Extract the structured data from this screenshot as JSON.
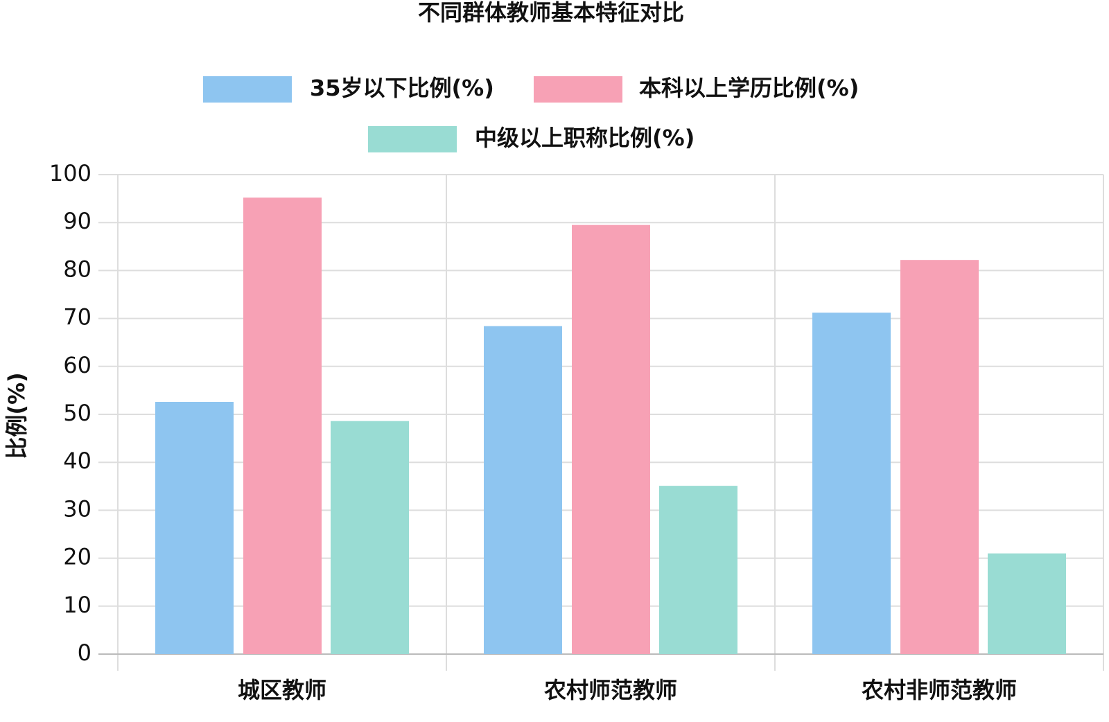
{
  "chart_data": {
    "type": "bar",
    "title": "不同群体教师基本特征对比",
    "y_label": "比例(%)",
    "categories": [
      "城区教师",
      "农村师范教师",
      "农村非师范教师"
    ],
    "series": [
      {
        "name": "35岁以下比例(%)",
        "color": "#8ec5f0",
        "values": [
          52.6,
          68.4,
          71.2
        ]
      },
      {
        "name": "本科以上学历比例(%)",
        "color": "#f7a1b5",
        "values": [
          95.2,
          89.5,
          82.2
        ]
      },
      {
        "name": "中级以上职称比例(%)",
        "color": "#99dcd3",
        "values": [
          48.6,
          35.1,
          21.0
        ]
      }
    ],
    "ylim": [
      0,
      100
    ],
    "yticks": [
      0,
      10,
      20,
      30,
      40,
      50,
      60,
      70,
      80,
      90,
      100
    ],
    "grid": true
  }
}
